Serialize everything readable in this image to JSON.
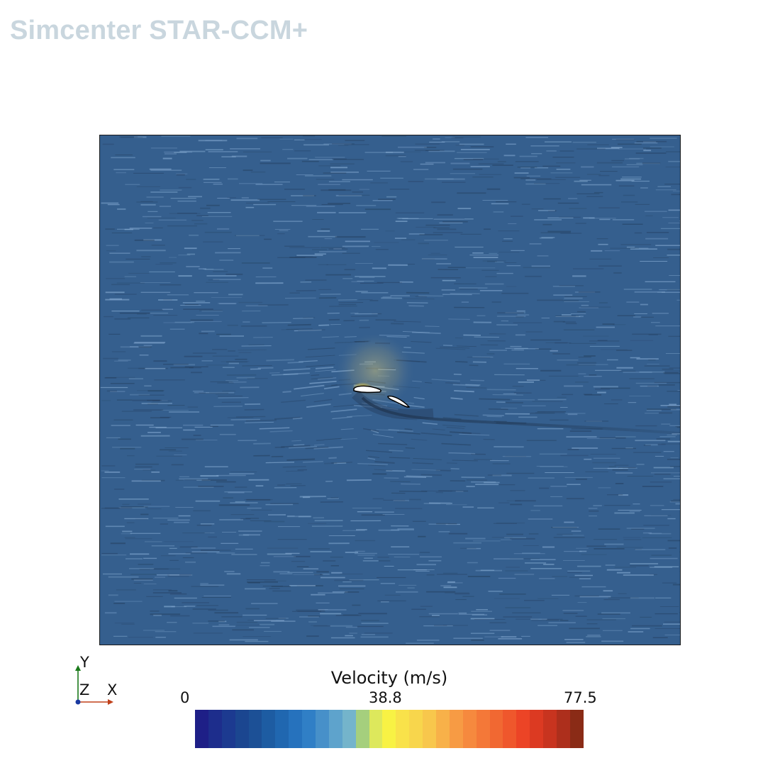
{
  "app": {
    "title": "Simcenter STAR-CCM+"
  },
  "scene": {
    "background_color": "#355f8e",
    "streak_color": "#8fb4da",
    "wake_color": "#1f3550",
    "airfoil_color": "#ffffff",
    "airfoil_outline": "#000000",
    "stagnation_glow": "#f3cf3a"
  },
  "triad": {
    "y_label": "Y",
    "z_label": "Z",
    "x_label": "X",
    "y_color": "#1a7a1a",
    "x_color": "#c0401a",
    "origin_color": "#1a3aa0"
  },
  "legend": {
    "title": "Velocity (m/s)",
    "min_label": "0",
    "mid_label": "38.8",
    "max_label": "77.5",
    "colors": [
      "#1e1f87",
      "#1d2d8c",
      "#1c3a90",
      "#1b4690",
      "#1c5096",
      "#1d5ca2",
      "#2067b0",
      "#2672bd",
      "#307fc6",
      "#4790c9",
      "#5ea3cc",
      "#74b4cb",
      "#a5cf7d",
      "#dde85c",
      "#f8f244",
      "#f9e24a",
      "#f8d64c",
      "#f8c74c",
      "#f8b149",
      "#f79b44",
      "#f6893e",
      "#f47838",
      "#f16832",
      "#ef572c",
      "#ec4426",
      "#dc3a22",
      "#c8341f",
      "#ad2f1c",
      "#8a2b16"
    ]
  }
}
